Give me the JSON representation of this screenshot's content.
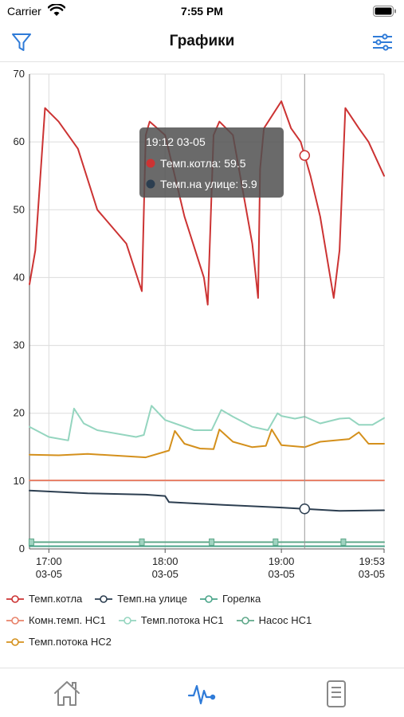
{
  "status_bar": {
    "carrier": "Carrier",
    "time": "7:55 PM"
  },
  "nav": {
    "title": "Графики",
    "filter_icon": "filter-icon",
    "settings_icon": "sliders-icon"
  },
  "colors": {
    "boiler": "#cc3333",
    "outside": "#2c3e50",
    "burner": "#4aa58a",
    "room": "#e8826a",
    "flow_hc1": "#94d5bf",
    "pump_hc1": "#5fa88a",
    "flow_hc2": "#d4901c",
    "accent": "#2f7bd8"
  },
  "chart_data": {
    "type": "line",
    "title": "",
    "ylim": [
      0,
      70
    ],
    "xlim": [
      "2021-03-05 16:50",
      "2021-03-05 19:53"
    ],
    "y_ticks": [
      "0",
      "10",
      "20",
      "30",
      "40",
      "50",
      "60",
      "70"
    ],
    "x_ticks": [
      {
        "time": "17:00",
        "date": "03-05"
      },
      {
        "time": "18:00",
        "date": "03-05"
      },
      {
        "time": "19:00",
        "date": "03-05"
      },
      {
        "time": "19:53",
        "date": "03-05"
      }
    ],
    "grid": true,
    "legend_position": "bottom",
    "series": [
      {
        "name": "Темп.котла",
        "color_key": "boiler",
        "x": [
          "16:50",
          "16:53",
          "16:58",
          "17:05",
          "17:15",
          "17:25",
          "17:40",
          "17:48",
          "17:50",
          "17:52",
          "18:00",
          "18:10",
          "18:20",
          "18:22",
          "18:25",
          "18:28",
          "18:35",
          "18:45",
          "18:48",
          "18:49",
          "18:51",
          "19:00",
          "19:05",
          "19:10",
          "19:15",
          "19:20",
          "19:27",
          "19:30",
          "19:33",
          "19:40",
          "19:45",
          "19:53"
        ],
        "values": [
          39,
          44,
          65,
          63,
          59,
          50,
          45,
          38,
          61,
          63,
          61,
          49,
          40,
          36,
          61,
          63,
          61,
          45,
          37,
          56,
          62,
          66,
          62,
          60,
          55,
          49,
          37,
          44,
          65,
          62,
          60,
          55
        ]
      },
      {
        "name": "Темп.на улице",
        "color_key": "outside",
        "x": [
          "16:50",
          "17:20",
          "17:50",
          "18:00",
          "18:02",
          "18:30",
          "19:00",
          "19:12",
          "19:30",
          "19:53"
        ],
        "values": [
          8.6,
          8.2,
          8.0,
          7.8,
          6.9,
          6.5,
          6.1,
          5.9,
          5.6,
          5.7
        ]
      },
      {
        "name": "Горелка",
        "color_key": "burner",
        "x": [
          "16:50",
          "19:53"
        ],
        "values": [
          0.4,
          0.4
        ]
      },
      {
        "name": "Комн.темп. НС1",
        "color_key": "room",
        "x": [
          "16:50",
          "19:53"
        ],
        "values": [
          10.1,
          10.1
        ]
      },
      {
        "name": "Темп.потока НС1",
        "color_key": "flow_hc1",
        "x": [
          "16:50",
          "17:00",
          "17:10",
          "17:13",
          "17:18",
          "17:25",
          "17:45",
          "17:49",
          "17:53",
          "18:00",
          "18:15",
          "18:24",
          "18:29",
          "18:35",
          "18:45",
          "18:53",
          "18:58",
          "19:00",
          "19:07",
          "19:12",
          "19:20",
          "19:30",
          "19:35",
          "19:40",
          "19:47",
          "19:53"
        ],
        "values": [
          18,
          16.5,
          16,
          20.7,
          18.5,
          17.5,
          16.5,
          16.8,
          21.1,
          19,
          17.5,
          17.5,
          20.5,
          19.5,
          18,
          17.5,
          20,
          19.6,
          19.2,
          19.5,
          18.5,
          19.2,
          19.3,
          18.3,
          18.3,
          19.3
        ]
      },
      {
        "name": "Насос НС1",
        "color_key": "pump_hc1",
        "x": [
          "16:50",
          "19:53"
        ],
        "values": [
          1.0,
          1.0
        ]
      },
      {
        "name": "Темп.потока НС2",
        "color_key": "flow_hc2",
        "x": [
          "16:50",
          "17:05",
          "17:20",
          "17:50",
          "18:02",
          "18:05",
          "18:10",
          "18:18",
          "18:25",
          "18:28",
          "18:35",
          "18:45",
          "18:52",
          "18:55",
          "19:00",
          "19:12",
          "19:20",
          "19:35",
          "19:40",
          "19:45",
          "19:53"
        ],
        "values": [
          13.9,
          13.8,
          14.0,
          13.5,
          14.5,
          17.4,
          15.5,
          14.8,
          14.7,
          17.6,
          15.8,
          15.0,
          15.2,
          17.6,
          15.3,
          15.0,
          15.8,
          16.2,
          17.2,
          15.5,
          15.5
        ]
      }
    ],
    "tooltip": {
      "time": "19:12 03-05",
      "items": [
        {
          "label": "Темп.котла: 59.5",
          "color_key": "boiler"
        },
        {
          "label": "Темп.на улице: 5.9",
          "color_key": "outside"
        }
      ],
      "cursor_time": "19:12"
    }
  },
  "legend": {
    "rows": [
      [
        {
          "label": "Темп.котла",
          "color_key": "boiler"
        },
        {
          "label": "Темп.на улице",
          "color_key": "outside"
        },
        {
          "label": "Горелка",
          "color_key": "burner"
        }
      ],
      [
        {
          "label": "Комн.темп. НС1",
          "color_key": "room"
        },
        {
          "label": "Темп.потока НС1",
          "color_key": "flow_hc1"
        },
        {
          "label": "Насос НС1",
          "color_key": "pump_hc1"
        }
      ],
      [
        {
          "label": "Темп.потока НС2",
          "color_key": "flow_hc2"
        }
      ]
    ]
  },
  "tabs": [
    {
      "icon": "home-icon"
    },
    {
      "icon": "pulse-icon"
    },
    {
      "icon": "document-icon"
    }
  ]
}
